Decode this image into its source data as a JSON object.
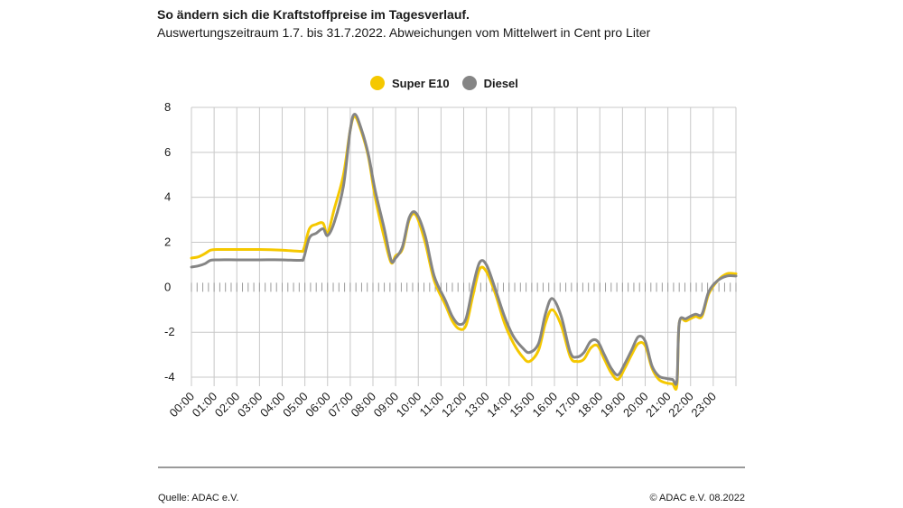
{
  "title": "So ändern sich die Kraftstoffpreise im Tagesverlauf.",
  "subtitle": "Auswertungszeitraum 1.7. bis 31.7.2022. Abweichungen vom Mittelwert in Cent pro Liter",
  "source": "Quelle: ADAC e.V.",
  "copyright": "© ADAC e.V. 08.2022",
  "colors": {
    "super_e10": "#f5c800",
    "diesel": "#858585",
    "grid": "#c8c8c8"
  },
  "chart_data": {
    "type": "line",
    "legend_position": "top-center",
    "grid": true,
    "xlim": [
      0,
      24
    ],
    "ylim": [
      -4.4,
      8
    ],
    "y_ticks": [
      -4,
      -2,
      0,
      2,
      4,
      6,
      8
    ],
    "y_tick_labels": [
      "-4",
      "-2",
      "0",
      "2",
      "4",
      "6",
      "8"
    ],
    "x_ticks": [
      0,
      1,
      2,
      3,
      4,
      5,
      6,
      7,
      8,
      9,
      10,
      11,
      12,
      13,
      14,
      15,
      16,
      17,
      18,
      19,
      20,
      21,
      22,
      23
    ],
    "x_tick_labels": [
      "00:00",
      "01:00",
      "02:00",
      "03:00",
      "04:00",
      "05:00",
      "06:00",
      "07:00",
      "08:00",
      "09:00",
      "10:00",
      "11:00",
      "12:00",
      "13:00",
      "14:00",
      "15:00",
      "16:00",
      "17:00",
      "18:00",
      "19:00",
      "20:00",
      "21:00",
      "22:00",
      "23:00"
    ],
    "series": [
      {
        "name": "Super E10",
        "color": "#f5c800",
        "x": [
          0,
          0.3,
          0.6,
          0.85,
          1.2,
          2,
          3,
          4,
          4.8,
          4.95,
          5.2,
          5.5,
          5.8,
          6,
          6.3,
          6.7,
          7.0,
          7.2,
          7.5,
          7.8,
          8.1,
          8.5,
          8.8,
          9.0,
          9.3,
          9.6,
          9.9,
          10.3,
          10.7,
          11.2,
          11.5,
          11.8,
          12.1,
          12.4,
          12.7,
          13.0,
          13.4,
          13.8,
          14.2,
          14.6,
          14.9,
          15.3,
          15.6,
          15.9,
          16.3,
          16.7,
          17.0,
          17.3,
          17.6,
          17.9,
          18.2,
          18.5,
          18.8,
          19.1,
          19.4,
          19.7,
          20.0,
          20.3,
          20.6,
          20.9,
          21.2,
          21.4,
          21.5,
          21.8,
          22.2,
          22.5,
          22.8,
          23.2,
          23.6,
          24
        ],
        "values": [
          1.3,
          1.35,
          1.5,
          1.65,
          1.68,
          1.68,
          1.68,
          1.65,
          1.6,
          1.7,
          2.6,
          2.8,
          2.85,
          2.4,
          3.5,
          5.0,
          7.0,
          7.6,
          6.9,
          5.8,
          4.0,
          2.2,
          1.1,
          1.4,
          1.7,
          3.0,
          3.2,
          2.0,
          0.3,
          -0.8,
          -1.5,
          -1.85,
          -1.7,
          -0.4,
          0.8,
          0.7,
          -0.3,
          -1.6,
          -2.5,
          -3.1,
          -3.3,
          -2.8,
          -1.6,
          -1.0,
          -1.7,
          -3.1,
          -3.3,
          -3.2,
          -2.7,
          -2.6,
          -3.2,
          -3.8,
          -4.1,
          -3.6,
          -3.0,
          -2.5,
          -2.6,
          -3.6,
          -4.1,
          -4.25,
          -4.3,
          -4.35,
          -1.6,
          -1.5,
          -1.3,
          -1.3,
          -0.3,
          0.3,
          0.6,
          0.6
        ]
      },
      {
        "name": "Diesel",
        "color": "#858585",
        "x": [
          0,
          0.3,
          0.6,
          0.85,
          1.2,
          2,
          3,
          4,
          4.8,
          4.95,
          5.2,
          5.5,
          5.8,
          6,
          6.3,
          6.7,
          7.0,
          7.2,
          7.5,
          7.8,
          8.1,
          8.5,
          8.8,
          9.0,
          9.3,
          9.6,
          9.9,
          10.3,
          10.7,
          11.2,
          11.5,
          11.8,
          12.1,
          12.4,
          12.7,
          13.0,
          13.4,
          13.8,
          14.2,
          14.6,
          14.9,
          15.3,
          15.6,
          15.9,
          16.3,
          16.7,
          17.0,
          17.3,
          17.6,
          17.9,
          18.2,
          18.5,
          18.8,
          19.1,
          19.4,
          19.7,
          20.0,
          20.3,
          20.6,
          20.9,
          21.2,
          21.4,
          21.5,
          21.8,
          22.2,
          22.5,
          22.8,
          23.2,
          23.6,
          24
        ],
        "values": [
          0.9,
          0.95,
          1.05,
          1.2,
          1.22,
          1.22,
          1.22,
          1.22,
          1.2,
          1.3,
          2.2,
          2.4,
          2.6,
          2.3,
          2.9,
          4.5,
          7.0,
          7.7,
          7.0,
          5.9,
          4.3,
          2.6,
          1.2,
          1.3,
          1.8,
          3.1,
          3.3,
          2.3,
          0.5,
          -0.6,
          -1.3,
          -1.65,
          -1.4,
          0.0,
          1.1,
          1.0,
          -0.1,
          -1.3,
          -2.2,
          -2.7,
          -2.9,
          -2.5,
          -1.2,
          -0.5,
          -1.3,
          -2.9,
          -3.1,
          -2.9,
          -2.4,
          -2.4,
          -3.0,
          -3.6,
          -3.9,
          -3.4,
          -2.8,
          -2.2,
          -2.4,
          -3.5,
          -3.95,
          -4.05,
          -4.1,
          -4.15,
          -1.6,
          -1.4,
          -1.2,
          -1.2,
          -0.2,
          0.3,
          0.5,
          0.5
        ]
      }
    ]
  }
}
